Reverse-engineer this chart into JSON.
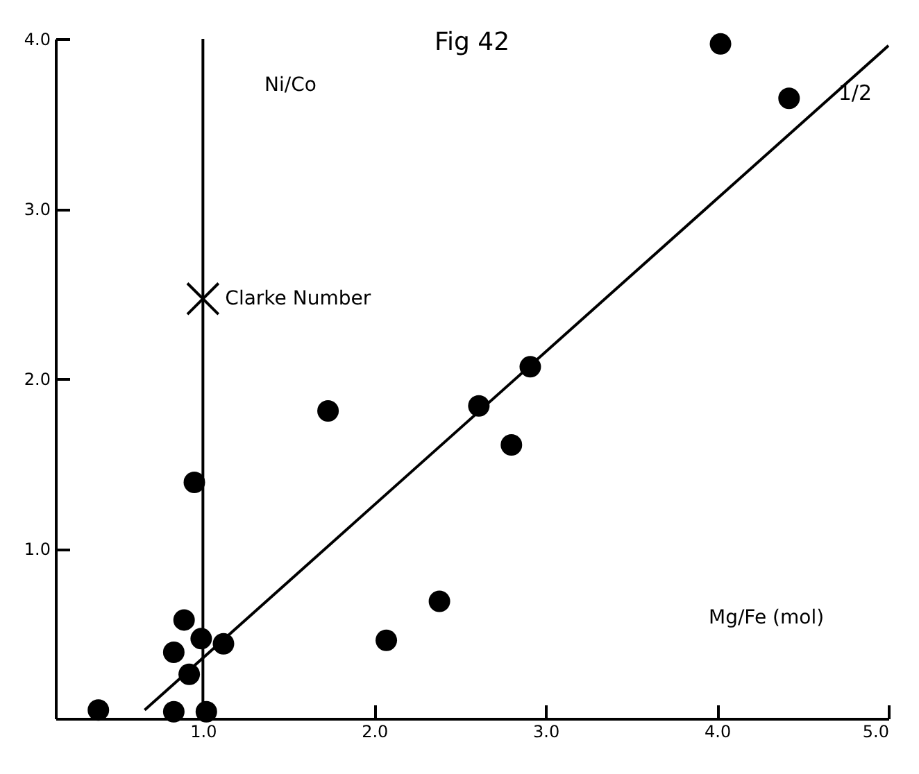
{
  "chart_data": {
    "type": "scatter",
    "title": "Fig 42",
    "xlabel": "Mg/Fe (mol)",
    "ylabel": "Ni/Co",
    "xlim": [
      0.14,
      5.0
    ],
    "ylim": [
      0,
      4.0
    ],
    "xticks": [
      {
        "value": 1,
        "label": "1.0"
      },
      {
        "value": 2,
        "label": "2.0"
      },
      {
        "value": 3,
        "label": "3.0"
      },
      {
        "value": 4,
        "label": "4.0"
      },
      {
        "value": 5,
        "label": "5.0"
      }
    ],
    "yticks": [
      {
        "value": 1,
        "label": "1.0"
      },
      {
        "value": 2,
        "label": "2.0"
      },
      {
        "value": 3,
        "label": "3.0"
      },
      {
        "value": 4,
        "label": "4.0"
      }
    ],
    "grid": false,
    "series": [
      {
        "color": "#000000",
        "marker": "circle",
        "x": [
          0.95,
          0.89,
          0.99,
          1.12,
          0.83,
          0.92,
          0.39,
          0.83,
          1.02,
          1.73,
          2.61,
          2.91,
          2.8,
          2.38,
          2.07,
          4.02,
          4.42
        ],
        "values": [
          1.39,
          0.58,
          0.47,
          0.44,
          0.39,
          0.26,
          0.05,
          0.04,
          0.04,
          1.81,
          1.84,
          2.07,
          1.61,
          0.69,
          0.46,
          3.97,
          3.65
        ]
      },
      {
        "type": "scatter",
        "name": "Clarke Number",
        "color": "#000000",
        "marker": "cross",
        "x": [
          1.0
        ],
        "values": [
          2.47
        ]
      },
      {
        "type": "line",
        "name": "1/2",
        "color": "#000000",
        "x": [
          0.66,
          5.0
        ],
        "values": [
          0.05,
          3.96
        ]
      }
    ],
    "ref_lines": [
      {
        "axis": "x",
        "value": 1.0
      }
    ]
  }
}
